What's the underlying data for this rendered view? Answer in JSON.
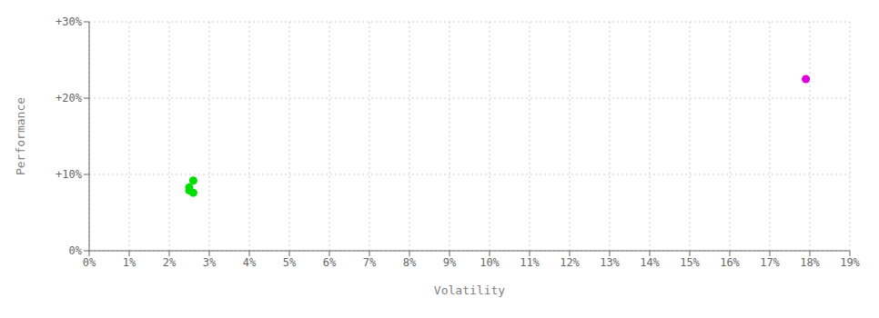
{
  "chart_data": {
    "type": "scatter",
    "xlabel": "Volatility",
    "ylabel": "Performance",
    "xlim": [
      0,
      0.19
    ],
    "ylim": [
      0,
      0.3
    ],
    "xticks": [
      {
        "value": 0.0,
        "label": "0%"
      },
      {
        "value": 0.01,
        "label": "1%"
      },
      {
        "value": 0.02,
        "label": "2%"
      },
      {
        "value": 0.03,
        "label": "3%"
      },
      {
        "value": 0.04,
        "label": "4%"
      },
      {
        "value": 0.05,
        "label": "5%"
      },
      {
        "value": 0.06,
        "label": "6%"
      },
      {
        "value": 0.07,
        "label": "7%"
      },
      {
        "value": 0.08,
        "label": "8%"
      },
      {
        "value": 0.09,
        "label": "9%"
      },
      {
        "value": 0.1,
        "label": "10%"
      },
      {
        "value": 0.11,
        "label": "11%"
      },
      {
        "value": 0.12,
        "label": "12%"
      },
      {
        "value": 0.13,
        "label": "13%"
      },
      {
        "value": 0.14,
        "label": "14%"
      },
      {
        "value": 0.15,
        "label": "15%"
      },
      {
        "value": 0.16,
        "label": "16%"
      },
      {
        "value": 0.17,
        "label": "17%"
      },
      {
        "value": 0.18,
        "label": "18%"
      },
      {
        "value": 0.19,
        "label": "19%"
      }
    ],
    "yticks": [
      {
        "value": 0.0,
        "label": "0%"
      },
      {
        "value": 0.1,
        "label": "+10%"
      },
      {
        "value": 0.2,
        "label": "+20%"
      },
      {
        "value": 0.3,
        "label": "+30%"
      }
    ],
    "grid": true,
    "series": [
      {
        "color": "#00dd00",
        "x": [
          0.026,
          0.025,
          0.025,
          0.026
        ],
        "values": [
          0.092,
          0.083,
          0.079,
          0.076
        ]
      },
      {
        "color": "#dd00dd",
        "x": [
          0.179
        ],
        "values": [
          0.225
        ]
      }
    ]
  }
}
